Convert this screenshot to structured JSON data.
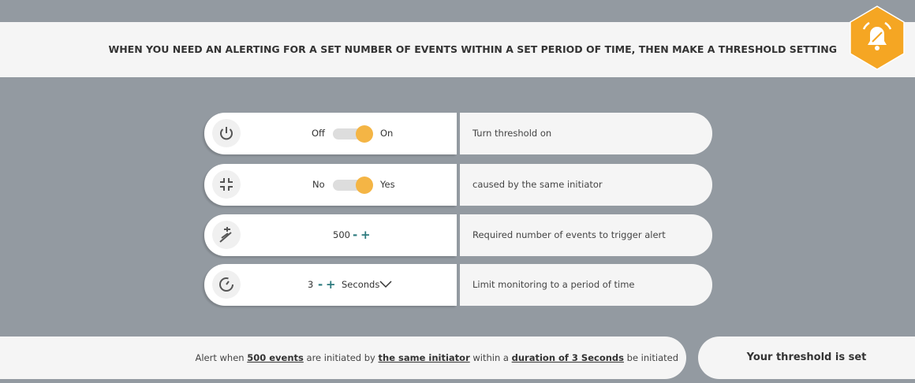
{
  "header": {
    "title": "WHEN YOU NEED AN ALERTING FOR A SET NUMBER OF EVENTS WITHIN A SET PERIOD OF TIME, THEN MAKE A THRESHOLD SETTING"
  },
  "settings": [
    {
      "off_label": "Off",
      "on_label": "On",
      "description": "Turn threshold on"
    },
    {
      "off_label": "No",
      "on_label": "Yes",
      "description": "caused by the same initiator"
    },
    {
      "value": 500,
      "minus": "-",
      "plus": "+",
      "description": "Required number of events to trigger alert"
    },
    {
      "value": 3,
      "minus": "-",
      "plus": "+",
      "unit": "Seconds",
      "description": "Limit monitoring to a period of time"
    }
  ],
  "summary": {
    "parts": [
      "Alert when ",
      "500 events",
      " are initiated by ",
      "the same initiator",
      " within a ",
      "duration of 3 Seconds",
      " be initiated"
    ]
  },
  "button": {
    "label": "Your threshold is set"
  }
}
